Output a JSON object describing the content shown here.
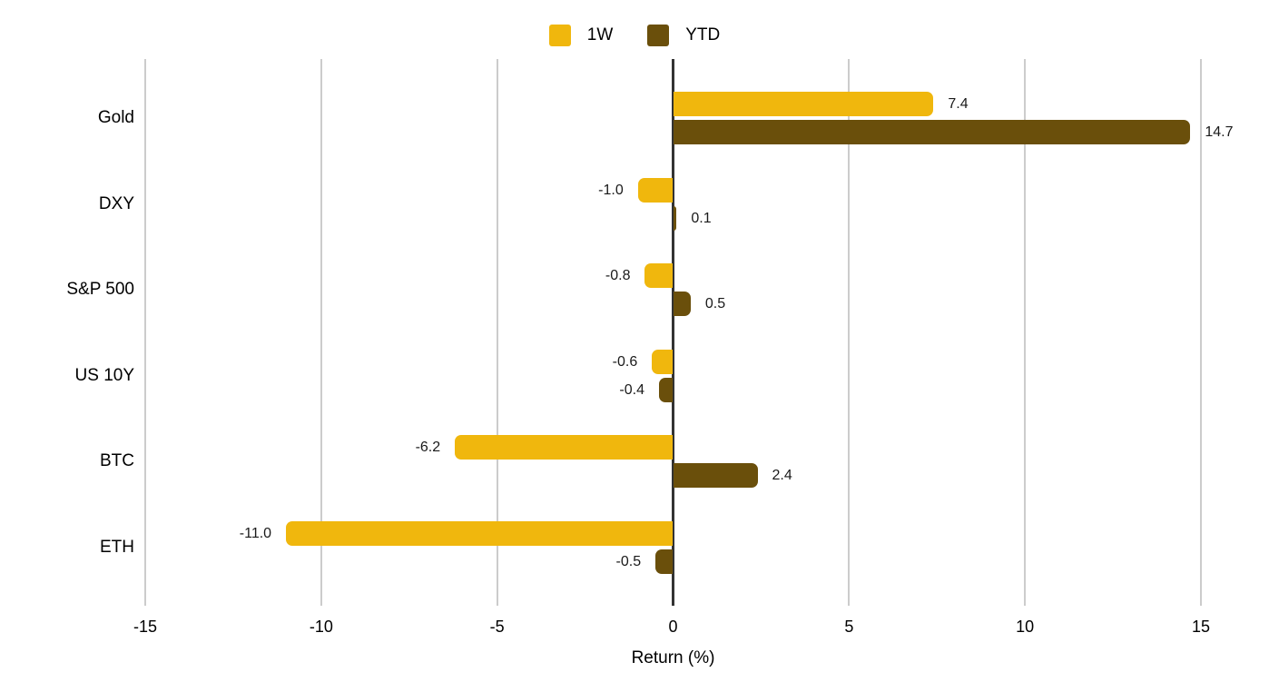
{
  "chart_data": {
    "type": "bar",
    "orientation": "horizontal",
    "categories": [
      "Gold",
      "DXY",
      "S&P 500",
      "US 10Y",
      "BTC",
      "ETH"
    ],
    "series": [
      {
        "name": "1W",
        "color": "#F0B70D",
        "values": [
          7.4,
          -1.0,
          -0.8,
          -0.6,
          -6.2,
          -11.0
        ],
        "labels": [
          "7.4",
          "-1.0",
          "-0.8",
          "-0.6",
          "-6.2",
          "-11.0"
        ]
      },
      {
        "name": "YTD",
        "color": "#6A4F0B",
        "values": [
          14.7,
          0.1,
          0.5,
          -0.4,
          2.4,
          -0.5
        ],
        "labels": [
          "14.7",
          "0.1",
          "0.5",
          "-0.4",
          "2.4",
          "-0.5"
        ]
      }
    ],
    "xlabel": "Return (%)",
    "xlim": [
      -15,
      15
    ],
    "xticks": [
      -15,
      -10,
      -5,
      0,
      5,
      10,
      15
    ],
    "tick_labels": [
      "-15",
      "-10",
      "-5",
      "0",
      "5",
      "10",
      "15"
    ],
    "grid": true,
    "legend_position": "top",
    "value_labels_shown": true
  },
  "colors": {
    "background": "#FFFFFF",
    "gridline": "#CCCCCC",
    "zero_line": "#333333",
    "text": "#000000",
    "value_label_text": "#1A1A1A",
    "series_1w": "#F0B70D",
    "series_ytd": "#6A4F0B"
  }
}
